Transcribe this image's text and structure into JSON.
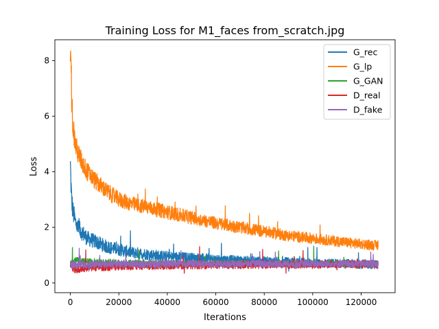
{
  "chart_data": {
    "type": "line",
    "title": "Training Loss for M1_faces from_scratch.jpg",
    "xlabel": "Iterations",
    "ylabel": "Loss",
    "xlim": [
      -6400,
      134000
    ],
    "ylim": [
      -0.35,
      8.75
    ],
    "xticks": [
      0,
      20000,
      40000,
      60000,
      80000,
      100000,
      120000
    ],
    "yticks": [
      0,
      2,
      4,
      6,
      8
    ],
    "grid": false,
    "legend_position": "top-right",
    "x": [
      0,
      500,
      1000,
      2000,
      3000,
      4000,
      5000,
      7000,
      10000,
      15000,
      20000,
      25000,
      30000,
      35000,
      40000,
      50000,
      60000,
      70000,
      80000,
      90000,
      100000,
      110000,
      120000,
      127000
    ],
    "series": [
      {
        "name": "G_rec",
        "color": "#1f77b4",
        "values": [
          4.2,
          3.0,
          2.6,
          2.2,
          2.0,
          1.9,
          1.8,
          1.6,
          1.5,
          1.3,
          1.2,
          1.1,
          1.05,
          1.0,
          0.95,
          0.9,
          0.85,
          0.8,
          0.78,
          0.75,
          0.72,
          0.7,
          0.68,
          0.67
        ]
      },
      {
        "name": "G_lp",
        "color": "#ff7f0e",
        "values": [
          8.3,
          6.8,
          5.7,
          5.0,
          4.7,
          4.5,
          4.3,
          4.0,
          3.7,
          3.3,
          3.0,
          2.85,
          2.75,
          2.65,
          2.55,
          2.35,
          2.15,
          2.0,
          1.85,
          1.7,
          1.6,
          1.5,
          1.4,
          1.35
        ]
      },
      {
        "name": "G_GAN",
        "color": "#2ca02c",
        "values": [
          0.7,
          0.72,
          0.75,
          0.8,
          0.8,
          0.78,
          0.77,
          0.76,
          0.75,
          0.74,
          0.73,
          0.72,
          0.72,
          0.71,
          0.7,
          0.7,
          0.7,
          0.7,
          0.69,
          0.69,
          0.69,
          0.69,
          0.69,
          0.69
        ]
      },
      {
        "name": "D_real",
        "color": "#d62728",
        "values": [
          0.65,
          0.6,
          0.55,
          0.5,
          0.5,
          0.52,
          0.53,
          0.55,
          0.56,
          0.58,
          0.6,
          0.6,
          0.62,
          0.62,
          0.63,
          0.64,
          0.65,
          0.65,
          0.66,
          0.66,
          0.66,
          0.67,
          0.67,
          0.67
        ]
      },
      {
        "name": "D_fake",
        "color": "#9467bd",
        "values": [
          0.68,
          0.66,
          0.64,
          0.63,
          0.64,
          0.65,
          0.66,
          0.66,
          0.67,
          0.67,
          0.68,
          0.68,
          0.68,
          0.68,
          0.69,
          0.69,
          0.69,
          0.69,
          0.69,
          0.69,
          0.69,
          0.69,
          0.69,
          0.69
        ]
      }
    ]
  }
}
